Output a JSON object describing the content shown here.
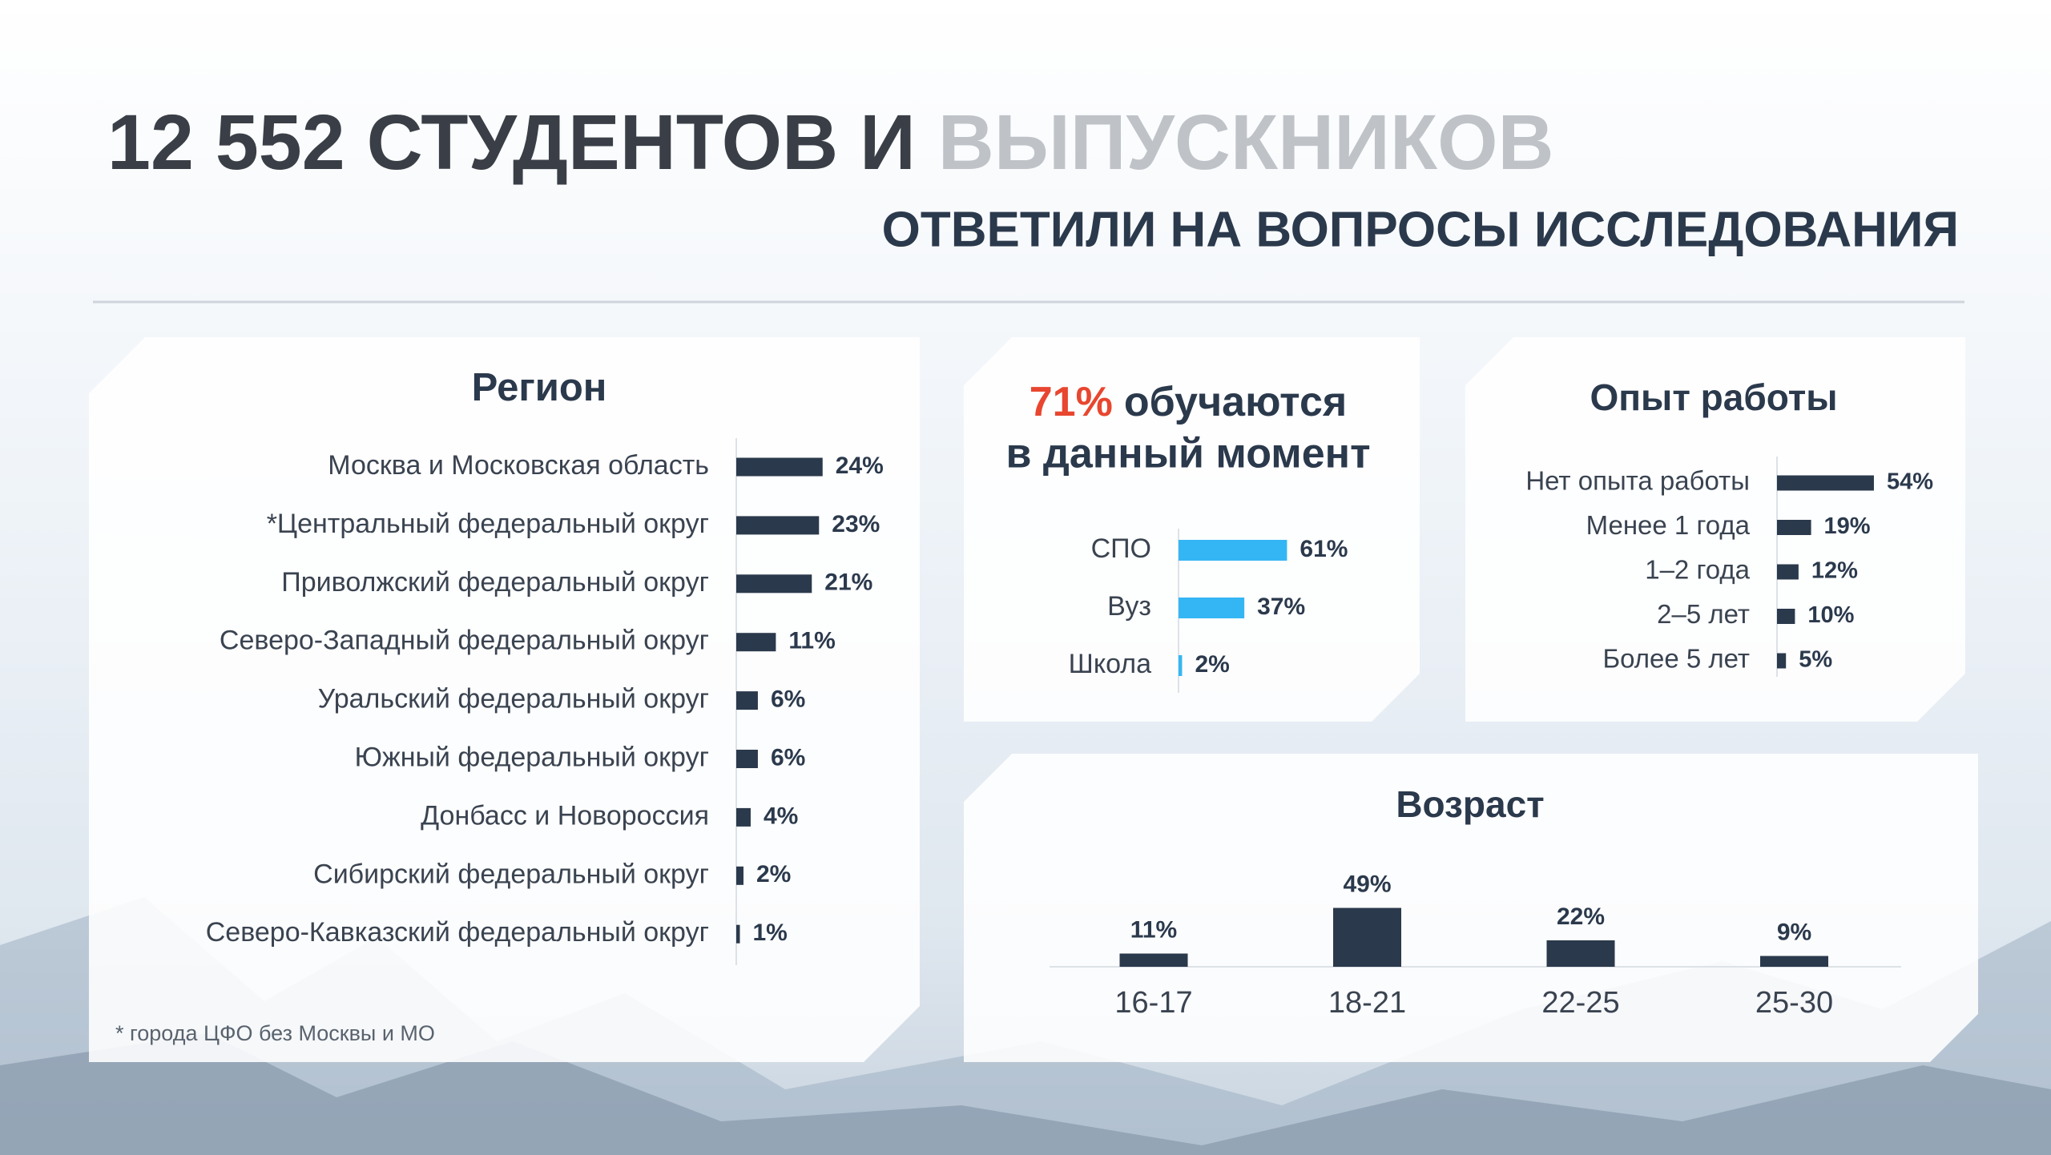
{
  "header": {
    "title_dark": "12 552 СТУДЕНТОВ И",
    "title_light": "ВЫПУСКНИКОВ",
    "subtitle": "ОТВЕТИЛИ НА ВОПРОСЫ ИССЛЕДОВАНИЯ"
  },
  "chart_data": [
    {
      "type": "bar",
      "orientation": "horizontal",
      "title": "Регион",
      "color": "#2b394c",
      "categories": [
        "Москва и Московская область",
        "*Центральный федеральный округ",
        "Приволжский федеральный округ",
        "Северо-Западный федеральный округ",
        "Уральский федеральный округ",
        "Южный федеральный округ",
        "Донбасс и Новороссия",
        "Сибирский федеральный округ",
        "Северо-Кавказский федеральный округ"
      ],
      "values": [
        24,
        23,
        21,
        11,
        6,
        6,
        4,
        2,
        1
      ],
      "value_labels": [
        "24%",
        "23%",
        "21%",
        "11%",
        "6%",
        "6%",
        "4%",
        "2%",
        "1%"
      ]
    },
    {
      "type": "bar",
      "orientation": "horizontal",
      "title_highlight": "71%",
      "title_lines": [
        "обучаются",
        "в данный момент"
      ],
      "color": "#35b6f4",
      "categories": [
        "СПО",
        "Вуз",
        "Школа"
      ],
      "values": [
        61,
        37,
        2
      ],
      "value_labels": [
        "61%",
        "37%",
        "2%"
      ]
    },
    {
      "type": "bar",
      "orientation": "horizontal",
      "title": "Опыт работы",
      "color": "#2b394c",
      "categories": [
        "Нет опыта работы",
        "Менее 1 года",
        "1–2 года",
        "2–5 лет",
        "Более 5 лет"
      ],
      "values": [
        54,
        19,
        12,
        10,
        5
      ],
      "value_labels": [
        "54%",
        "19%",
        "12%",
        "10%",
        "5%"
      ]
    },
    {
      "type": "bar",
      "orientation": "vertical",
      "title": "Возраст",
      "color": "#2b394c",
      "categories": [
        "16-17",
        "18-21",
        "22-25",
        "25-30"
      ],
      "values": [
        11,
        49,
        22,
        9
      ],
      "value_labels": [
        "11%",
        "49%",
        "22%",
        "9%"
      ]
    }
  ],
  "footnote": "* города ЦФО без Москвы и МО"
}
